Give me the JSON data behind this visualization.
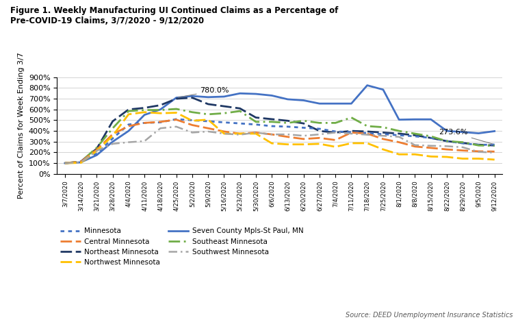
{
  "title": "Figure 1. Weekly Manufacturing UI Continued Claims as a Percentage of\nPre-COVID-19 Claims, 3/7/2020 - 9/12/2020",
  "ylabel": "Percent of Claims for Week Ending 3/7",
  "source": "Source: DEED Unemployment Insurance Statistics",
  "dates": [
    "3/7/2020",
    "3/14/2020",
    "3/21/2020",
    "3/28/2020",
    "4/4/2020",
    "4/11/2020",
    "4/18/2020",
    "4/25/2020",
    "5/2/2020",
    "5/9/2020",
    "5/16/2020",
    "5/23/2020",
    "5/30/2020",
    "6/6/2020",
    "6/13/2020",
    "6/20/2020",
    "6/27/2020",
    "7/4/2020",
    "7/11/2020",
    "7/18/2020",
    "7/25/2020",
    "8/1/2020",
    "8/8/2020",
    "8/15/2020",
    "8/22/2020",
    "8/29/2020",
    "9/5/2020",
    "9/12/2020"
  ],
  "Minnesota": [
    100,
    112,
    190,
    330,
    460,
    475,
    480,
    510,
    500,
    490,
    480,
    470,
    460,
    445,
    440,
    430,
    420,
    395,
    390,
    380,
    370,
    360,
    350,
    335,
    305,
    285,
    270,
    273.6
  ],
  "Northeast Minnesota": [
    100,
    115,
    235,
    490,
    600,
    615,
    640,
    700,
    710,
    650,
    630,
    610,
    525,
    510,
    495,
    470,
    400,
    385,
    400,
    395,
    385,
    375,
    360,
    335,
    305,
    288,
    272,
    265
  ],
  "Seven County": [
    100,
    108,
    175,
    300,
    400,
    550,
    600,
    710,
    725,
    715,
    720,
    750,
    745,
    730,
    695,
    685,
    655,
    655,
    655,
    825,
    785,
    505,
    508,
    508,
    400,
    390,
    378,
    398
  ],
  "Southwest Minnesota": [
    100,
    108,
    215,
    280,
    295,
    305,
    425,
    440,
    385,
    395,
    375,
    365,
    385,
    368,
    368,
    355,
    368,
    385,
    375,
    365,
    355,
    345,
    268,
    262,
    258,
    248,
    205,
    198
  ],
  "Central Minnesota": [
    100,
    113,
    225,
    370,
    445,
    475,
    485,
    505,
    455,
    425,
    395,
    375,
    385,
    368,
    345,
    325,
    335,
    315,
    385,
    375,
    325,
    295,
    255,
    242,
    228,
    218,
    210,
    208
  ],
  "Northwest Minnesota": [
    100,
    103,
    215,
    355,
    555,
    575,
    565,
    570,
    495,
    505,
    375,
    375,
    375,
    285,
    275,
    275,
    280,
    252,
    286,
    286,
    228,
    182,
    182,
    162,
    158,
    142,
    142,
    133
  ],
  "Southeast Minnesota": [
    100,
    113,
    245,
    425,
    585,
    595,
    595,
    605,
    575,
    555,
    565,
    585,
    485,
    485,
    475,
    495,
    475,
    475,
    525,
    445,
    435,
    400,
    375,
    350,
    305,
    295,
    265,
    262
  ],
  "ylim": [
    0,
    900
  ],
  "yticks": [
    0,
    100,
    200,
    300,
    400,
    500,
    600,
    700,
    800,
    900
  ]
}
